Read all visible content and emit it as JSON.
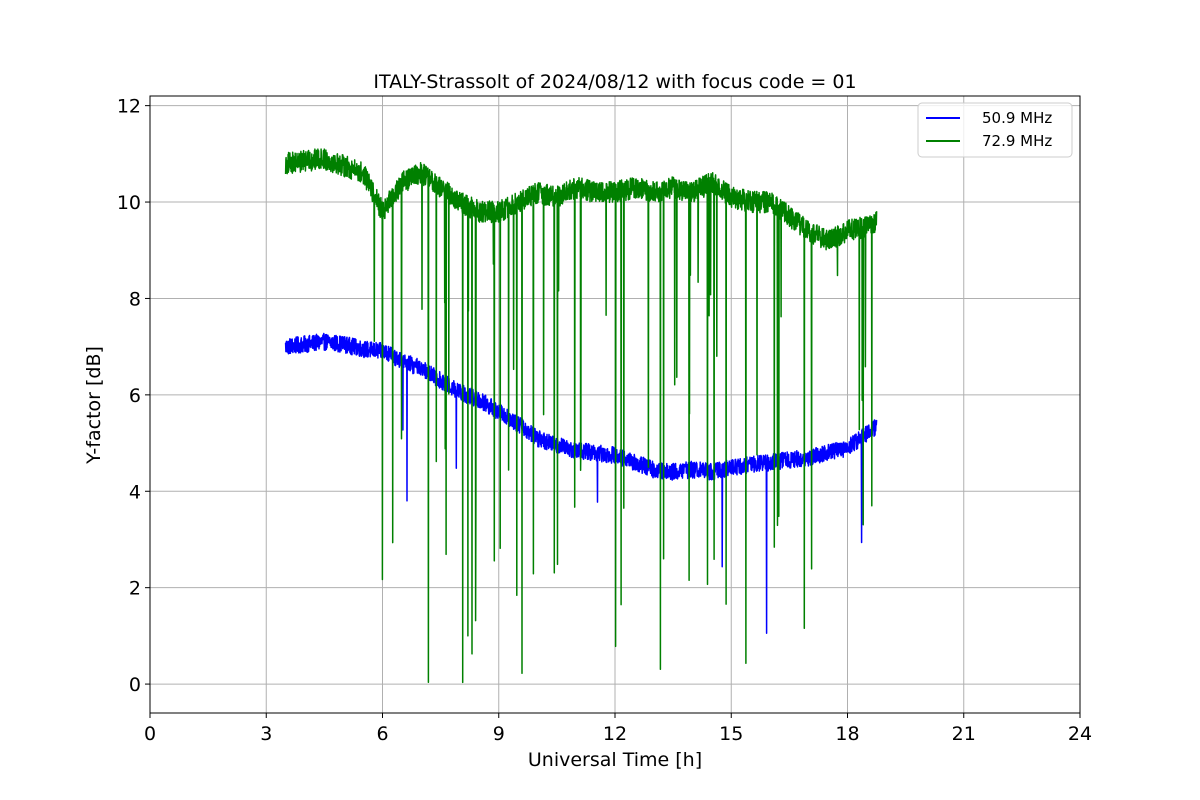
{
  "chart_data": {
    "type": "line",
    "title": "ITALY-Strassolt of 2024/08/12 with focus code = 01",
    "xlabel": "Universal Time [h]",
    "ylabel": "Y-factor [dB]",
    "xlim": [
      0,
      24
    ],
    "ylim": [
      -0.6,
      12.2
    ],
    "xticks": [
      0,
      3,
      6,
      9,
      12,
      15,
      18,
      21,
      24
    ],
    "yticks": [
      0,
      2,
      4,
      6,
      8,
      10,
      12
    ],
    "grid": true,
    "legend_position": "top-right",
    "series": [
      {
        "name": "50.9 MHz",
        "color": "#0000ff",
        "x": [
          3.5,
          4.0,
          4.5,
          5.0,
          5.5,
          6.0,
          6.5,
          7.0,
          7.5,
          8.0,
          8.5,
          9.0,
          9.5,
          10.0,
          10.5,
          11.0,
          11.5,
          12.0,
          12.5,
          13.0,
          13.5,
          14.0,
          14.5,
          15.0,
          15.5,
          16.0,
          16.5,
          17.0,
          17.5,
          18.0,
          18.5,
          18.75
        ],
        "y": [
          7.0,
          7.05,
          7.1,
          7.05,
          6.95,
          6.9,
          6.7,
          6.55,
          6.3,
          6.05,
          5.9,
          5.65,
          5.4,
          5.1,
          4.95,
          4.85,
          4.8,
          4.75,
          4.6,
          4.45,
          4.4,
          4.45,
          4.4,
          4.5,
          4.55,
          4.6,
          4.65,
          4.7,
          4.8,
          4.9,
          5.2,
          5.35
        ]
      },
      {
        "name": "72.9 MHz",
        "color": "#008000",
        "x": [
          3.5,
          4.0,
          4.5,
          5.0,
          5.5,
          6.0,
          6.5,
          7.0,
          7.5,
          8.0,
          8.5,
          9.0,
          9.5,
          10.0,
          10.5,
          11.0,
          11.5,
          12.0,
          12.5,
          13.0,
          13.5,
          14.0,
          14.5,
          15.0,
          15.5,
          16.0,
          16.5,
          17.0,
          17.5,
          18.0,
          18.5,
          18.75
        ],
        "y": [
          10.8,
          10.85,
          10.9,
          10.75,
          10.6,
          9.8,
          10.4,
          10.6,
          10.3,
          10.0,
          9.8,
          9.8,
          10.0,
          10.2,
          10.1,
          10.3,
          10.2,
          10.2,
          10.3,
          10.2,
          10.3,
          10.2,
          10.4,
          10.1,
          10.0,
          10.0,
          9.7,
          9.4,
          9.2,
          9.4,
          9.5,
          9.6
        ]
      }
    ]
  }
}
